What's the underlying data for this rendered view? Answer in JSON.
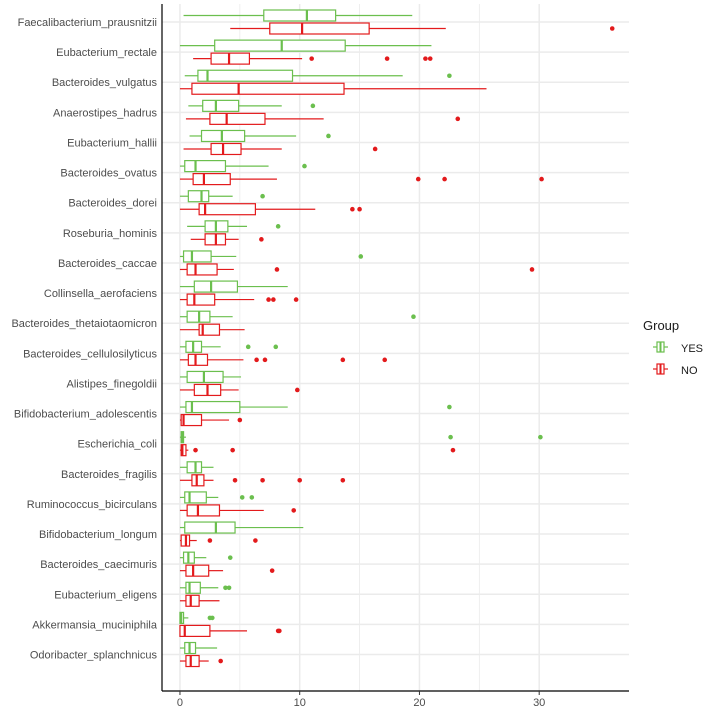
{
  "chart_data": {
    "type": "boxplot",
    "orientation": "horizontal",
    "title": "",
    "xlabel": "",
    "ylabel": "",
    "xlim": [
      -1.5,
      37.5
    ],
    "x_ticks": [
      0,
      10,
      20,
      30
    ],
    "grid": true,
    "legend": {
      "title": "Group",
      "placement": "right",
      "entries": [
        "YES",
        "NO"
      ]
    },
    "colors": {
      "YES": "#6bbf4e",
      "NO": "#e31a1c",
      "grid": "#ebebeb",
      "axis": "#000000"
    },
    "series": [
      {
        "name": "YES",
        "color": "#6bbf4e"
      },
      {
        "name": "NO",
        "color": "#e31a1c"
      }
    ],
    "categories": [
      {
        "name": "Faecalibacterium_prausnitzii",
        "YES": {
          "whisker_low": 0.3,
          "q1": 7.0,
          "median": 10.6,
          "q3": 13.0,
          "whisker_high": 19.4,
          "outliers": []
        },
        "NO": {
          "whisker_low": 4.2,
          "q1": 7.5,
          "median": 10.2,
          "q3": 15.8,
          "whisker_high": 22.2,
          "outliers": [
            36.1
          ]
        }
      },
      {
        "name": "Eubacterium_rectale",
        "YES": {
          "whisker_low": 0.0,
          "q1": 2.9,
          "median": 8.5,
          "q3": 13.8,
          "whisker_high": 21.0,
          "outliers": []
        },
        "NO": {
          "whisker_low": 1.1,
          "q1": 2.6,
          "median": 4.1,
          "q3": 5.8,
          "whisker_high": 10.2,
          "outliers": [
            11.0,
            17.3,
            20.5,
            20.9
          ]
        }
      },
      {
        "name": "Bacteroides_vulgatus",
        "YES": {
          "whisker_low": 0.4,
          "q1": 1.5,
          "median": 2.3,
          "q3": 9.4,
          "whisker_high": 18.6,
          "outliers": [
            22.5
          ]
        },
        "NO": {
          "whisker_low": 0.0,
          "q1": 1.0,
          "median": 4.9,
          "q3": 13.7,
          "whisker_high": 25.6,
          "outliers": []
        }
      },
      {
        "name": "Anaerostipes_hadrus",
        "YES": {
          "whisker_low": 0.7,
          "q1": 1.9,
          "median": 3.0,
          "q3": 4.9,
          "whisker_high": 8.5,
          "outliers": [
            11.1
          ]
        },
        "NO": {
          "whisker_low": 0.5,
          "q1": 2.5,
          "median": 3.9,
          "q3": 7.1,
          "whisker_high": 12.0,
          "outliers": [
            23.2
          ]
        }
      },
      {
        "name": "Eubacterium_hallii",
        "YES": {
          "whisker_low": 0.8,
          "q1": 1.8,
          "median": 3.5,
          "q3": 5.4,
          "whisker_high": 9.7,
          "outliers": [
            12.4
          ]
        },
        "NO": {
          "whisker_low": 0.3,
          "q1": 2.6,
          "median": 3.6,
          "q3": 5.1,
          "whisker_high": 8.5,
          "outliers": [
            16.3
          ]
        }
      },
      {
        "name": "Bacteroides_ovatus",
        "YES": {
          "whisker_low": 0.0,
          "q1": 0.4,
          "median": 1.3,
          "q3": 3.8,
          "whisker_high": 7.4,
          "outliers": [
            10.4
          ]
        },
        "NO": {
          "whisker_low": 0.0,
          "q1": 1.1,
          "median": 2.0,
          "q3": 4.2,
          "whisker_high": 8.1,
          "outliers": [
            19.9,
            22.1,
            30.2
          ]
        }
      },
      {
        "name": "Bacteroides_dorei",
        "YES": {
          "whisker_low": 0.0,
          "q1": 0.7,
          "median": 1.8,
          "q3": 2.4,
          "whisker_high": 4.4,
          "outliers": [
            6.9
          ]
        },
        "NO": {
          "whisker_low": 0.0,
          "q1": 1.6,
          "median": 2.1,
          "q3": 6.3,
          "whisker_high": 11.3,
          "outliers": [
            14.4,
            15.0
          ]
        }
      },
      {
        "name": "Roseburia_hominis",
        "YES": {
          "whisker_low": 0.6,
          "q1": 2.1,
          "median": 3.0,
          "q3": 4.0,
          "whisker_high": 5.6,
          "outliers": [
            8.2
          ]
        },
        "NO": {
          "whisker_low": 0.9,
          "q1": 2.1,
          "median": 3.0,
          "q3": 3.8,
          "whisker_high": 4.9,
          "outliers": [
            6.8
          ]
        }
      },
      {
        "name": "Bacteroides_caccae",
        "YES": {
          "whisker_low": 0.0,
          "q1": 0.3,
          "median": 1.0,
          "q3": 2.6,
          "whisker_high": 4.7,
          "outliers": [
            15.1
          ]
        },
        "NO": {
          "whisker_low": 0.0,
          "q1": 0.6,
          "median": 1.3,
          "q3": 3.1,
          "whisker_high": 4.5,
          "outliers": [
            8.1,
            29.4
          ]
        }
      },
      {
        "name": "Collinsella_aerofaciens",
        "YES": {
          "whisker_low": 0.0,
          "q1": 1.2,
          "median": 2.6,
          "q3": 4.8,
          "whisker_high": 9.0,
          "outliers": []
        },
        "NO": {
          "whisker_low": 0.0,
          "q1": 0.6,
          "median": 1.2,
          "q3": 2.9,
          "whisker_high": 6.2,
          "outliers": [
            7.4,
            7.8,
            9.7
          ]
        }
      },
      {
        "name": "Bacteroides_thetaiotaomicron",
        "YES": {
          "whisker_low": 0.0,
          "q1": 0.6,
          "median": 1.6,
          "q3": 2.5,
          "whisker_high": 4.4,
          "outliers": [
            19.5
          ]
        },
        "NO": {
          "whisker_low": 0.0,
          "q1": 1.6,
          "median": 1.9,
          "q3": 3.3,
          "whisker_high": 5.4,
          "outliers": []
        }
      },
      {
        "name": "Bacteroides_cellulosilyticus",
        "YES": {
          "whisker_low": 0.0,
          "q1": 0.5,
          "median": 1.1,
          "q3": 1.8,
          "whisker_high": 3.4,
          "outliers": [
            5.7,
            8.0
          ]
        },
        "NO": {
          "whisker_low": 0.0,
          "q1": 0.7,
          "median": 1.3,
          "q3": 2.3,
          "whisker_high": 5.3,
          "outliers": [
            6.4,
            7.1,
            13.6,
            17.1
          ]
        }
      },
      {
        "name": "Alistipes_finegoldii",
        "YES": {
          "whisker_low": 0.0,
          "q1": 0.6,
          "median": 2.0,
          "q3": 3.6,
          "whisker_high": 5.1,
          "outliers": []
        },
        "NO": {
          "whisker_low": 0.0,
          "q1": 1.2,
          "median": 2.3,
          "q3": 3.4,
          "whisker_high": 4.9,
          "outliers": [
            9.8
          ]
        }
      },
      {
        "name": "Bifidobacterium_adolescentis",
        "YES": {
          "whisker_low": 0.0,
          "q1": 0.5,
          "median": 1.0,
          "q3": 5.0,
          "whisker_high": 9.0,
          "outliers": [
            22.5
          ]
        },
        "NO": {
          "whisker_low": 0.0,
          "q1": 0.1,
          "median": 0.3,
          "q3": 1.8,
          "whisker_high": 4.1,
          "outliers": [
            5.0
          ]
        }
      },
      {
        "name": "Escherichia_coli",
        "YES": {
          "whisker_low": 0.0,
          "q1": 0.1,
          "median": 0.2,
          "q3": 0.3,
          "whisker_high": 0.5,
          "outliers": [
            22.6,
            30.1
          ]
        },
        "NO": {
          "whisker_low": 0.0,
          "q1": 0.1,
          "median": 0.2,
          "q3": 0.5,
          "whisker_high": 0.7,
          "outliers": [
            1.3,
            4.4,
            22.8
          ]
        }
      },
      {
        "name": "Bacteroides_fragilis",
        "YES": {
          "whisker_low": 0.0,
          "q1": 0.6,
          "median": 1.3,
          "q3": 1.8,
          "whisker_high": 2.8,
          "outliers": []
        },
        "NO": {
          "whisker_low": 0.0,
          "q1": 1.0,
          "median": 1.4,
          "q3": 2.0,
          "whisker_high": 2.8,
          "outliers": [
            4.6,
            6.9,
            10.0,
            13.6
          ]
        }
      },
      {
        "name": "Ruminococcus_bicirculans",
        "YES": {
          "whisker_low": 0.0,
          "q1": 0.4,
          "median": 0.8,
          "q3": 2.2,
          "whisker_high": 3.2,
          "outliers": [
            5.2,
            6.0
          ]
        },
        "NO": {
          "whisker_low": 0.0,
          "q1": 0.6,
          "median": 1.5,
          "q3": 3.3,
          "whisker_high": 7.0,
          "outliers": [
            9.5
          ]
        }
      },
      {
        "name": "Bifidobacterium_longum",
        "YES": {
          "whisker_low": 0.0,
          "q1": 0.4,
          "median": 3.0,
          "q3": 4.6,
          "whisker_high": 10.3,
          "outliers": []
        },
        "NO": {
          "whisker_low": 0.0,
          "q1": 0.1,
          "median": 0.5,
          "q3": 0.8,
          "whisker_high": 1.4,
          "outliers": [
            2.5,
            6.3
          ]
        }
      },
      {
        "name": "Bacteroides_caecimuris",
        "YES": {
          "whisker_low": 0.0,
          "q1": 0.3,
          "median": 0.7,
          "q3": 1.2,
          "whisker_high": 2.2,
          "outliers": [
            4.2
          ]
        },
        "NO": {
          "whisker_low": 0.0,
          "q1": 0.5,
          "median": 1.1,
          "q3": 2.4,
          "whisker_high": 3.6,
          "outliers": [
            7.7
          ]
        }
      },
      {
        "name": "Eubacterium_eligens",
        "YES": {
          "whisker_low": 0.0,
          "q1": 0.5,
          "median": 0.8,
          "q3": 1.7,
          "whisker_high": 3.2,
          "outliers": [
            3.8,
            4.1
          ]
        },
        "NO": {
          "whisker_low": 0.0,
          "q1": 0.5,
          "median": 0.9,
          "q3": 1.6,
          "whisker_high": 3.3,
          "outliers": []
        }
      },
      {
        "name": "Akkermansia_muciniphila",
        "YES": {
          "whisker_low": 0.0,
          "q1": 0.0,
          "median": 0.1,
          "q3": 0.3,
          "whisker_high": 0.7,
          "outliers": [
            2.5,
            2.7
          ]
        },
        "NO": {
          "whisker_low": 0.0,
          "q1": 0.0,
          "median": 0.4,
          "q3": 2.5,
          "whisker_high": 5.6,
          "outliers": [
            8.2,
            8.3
          ]
        }
      },
      {
        "name": "Odoribacter_splanchnicus",
        "YES": {
          "whisker_low": 0.0,
          "q1": 0.4,
          "median": 0.8,
          "q3": 1.3,
          "whisker_high": 3.1,
          "outliers": []
        },
        "NO": {
          "whisker_low": 0.0,
          "q1": 0.5,
          "median": 0.9,
          "q3": 1.6,
          "whisker_high": 2.4,
          "outliers": [
            3.4
          ]
        }
      }
    ]
  }
}
